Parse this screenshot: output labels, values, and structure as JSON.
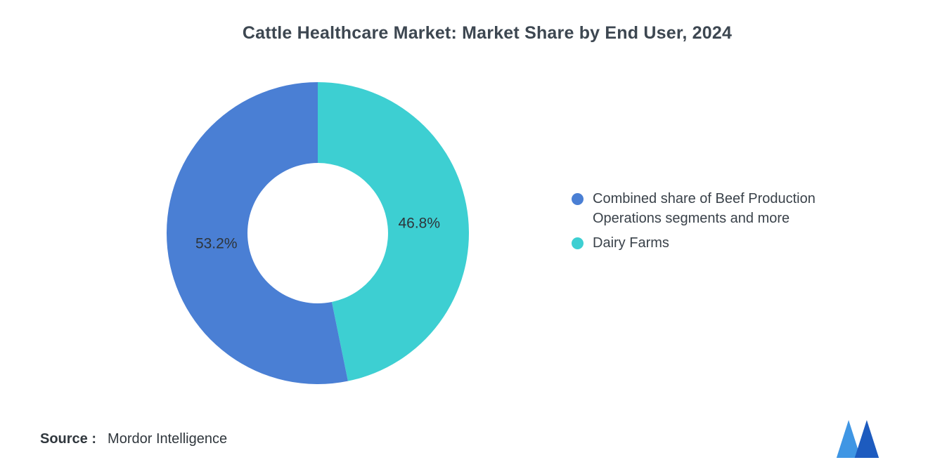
{
  "title": "Cattle Healthcare Market: Market Share by End User, 2024",
  "chart_data": {
    "type": "pie",
    "subtype": "donut",
    "title": "Cattle Healthcare Market: Market Share by End User, 2024",
    "unit": "%",
    "inner_radius_ratio": 0.465,
    "start_angle_deg": -90,
    "direction": "clockwise",
    "slices": [
      {
        "name": "Dairy Farms",
        "value": 46.8,
        "label": "46.8%",
        "color": "#3dcfd2"
      },
      {
        "name": "Combined share of Beef Production Operations segments and more",
        "value": 53.2,
        "label": "53.2%",
        "color": "#4a7fd4"
      }
    ],
    "legend_position": "right"
  },
  "legend": {
    "items": [
      {
        "lines": [
          "Combined share of Beef Production",
          "Operations segments and more"
        ],
        "color": "#4a7fd4"
      },
      {
        "lines": [
          "Dairy Farms"
        ],
        "color": "#3dcfd2"
      }
    ]
  },
  "footer": {
    "source_label": "Source :",
    "source_value": "Mordor Intelligence",
    "logo_colors": {
      "light": "#3f96e4",
      "dark": "#1d5bbf"
    }
  }
}
